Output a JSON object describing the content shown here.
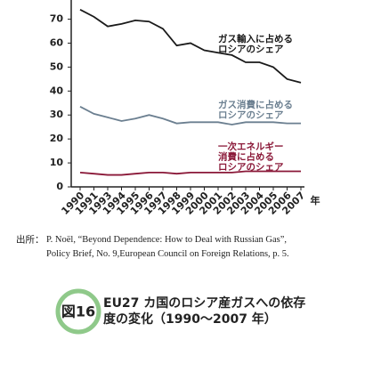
{
  "chart_data": {
    "type": "line",
    "categories": [
      "1990",
      "1991",
      "1993",
      "1994",
      "1995",
      "1996",
      "1997",
      "1998",
      "1999",
      "2000",
      "2001",
      "2002",
      "2003",
      "2004",
      "2005",
      "2006",
      "2007"
    ],
    "x_label": "年",
    "ylim": [
      0,
      78
    ],
    "yticks": [
      0,
      10,
      20,
      30,
      40,
      50,
      60,
      70
    ],
    "series": [
      {
        "name": "ガス輸入に占める\nロシアのシェア",
        "color": "#1a1a1a",
        "values": [
          74,
          71,
          67,
          68,
          69.5,
          69,
          66,
          59,
          60,
          57,
          56,
          55,
          52,
          52,
          50,
          45,
          43.5
        ]
      },
      {
        "name": "ガス消費に占める\nロシアのシェア",
        "color": "#6b7f90",
        "values": [
          33.5,
          30.5,
          29,
          27.5,
          28.5,
          30,
          28.5,
          26.5,
          27,
          27,
          27,
          26,
          27,
          27,
          27,
          26.5,
          26.5
        ]
      },
      {
        "name": "一次エネルギー\n消費に占める\nロシアのシェア",
        "color": "#8a1838",
        "values": [
          6,
          5.5,
          5,
          5,
          5.5,
          6,
          6,
          5.5,
          6,
          6,
          6,
          6,
          6.5,
          6.5,
          6.5,
          6.5,
          6.5
        ]
      }
    ]
  },
  "source_label": "出所：",
  "source": "P. Noël, “Beyond Dependence: How to Deal with Russian Gas”,\nPolicy Brief, No. 9,European Council on Foreign Relations, p. 5.",
  "figure_label": "図16",
  "caption": "EU27 カ国のロシア産ガスへの依存\n度の変化（1990～2007 年）"
}
